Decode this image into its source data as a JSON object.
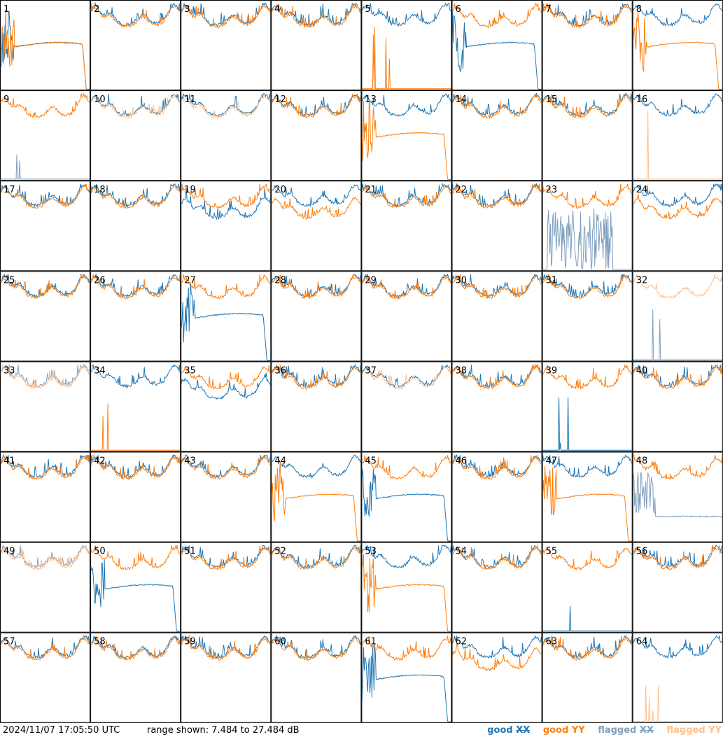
{
  "footer": {
    "timestamp": "2024/11/07 17:05:50 UTC",
    "range_text": "range shown: 7.484 to 27.484 dB"
  },
  "legend": {
    "good_xx": {
      "label": "good",
      "pol": "XX",
      "color": "#1f77b4"
    },
    "good_yy": {
      "label": "good",
      "pol": "YY",
      "color": "#ff7f0e"
    },
    "flagged_xx": {
      "label": "flagged",
      "pol": "XX",
      "color": "#7f9fbf"
    },
    "flagged_yy": {
      "label": "flagged",
      "pol": "YY",
      "color": "#ffbf8c"
    }
  },
  "chart_data": {
    "type": "line",
    "layout": "small-multiples",
    "grid": "8x8",
    "ylim": [
      7.484,
      27.484
    ],
    "units": "dB",
    "tiles": [
      {
        "id": "1",
        "xx": "sat",
        "yy": "sat",
        "note": "XX and YY both saturated, droop at right edge"
      },
      {
        "id": "2",
        "xx": "n",
        "yy": "n"
      },
      {
        "id": "3",
        "xx": "n",
        "yy": "n"
      },
      {
        "id": "4",
        "xx": "n",
        "yy": "n"
      },
      {
        "id": "5",
        "xx": "n",
        "yy": "dead"
      },
      {
        "id": "6",
        "xx": "sat",
        "yy": "n"
      },
      {
        "id": "7",
        "xx": "n",
        "yy": "n"
      },
      {
        "id": "8",
        "xx": "n",
        "yy": "sat"
      },
      {
        "id": "9",
        "xx": "fdead",
        "yy": "n"
      },
      {
        "id": "10",
        "xx": "n",
        "yy": "fn"
      },
      {
        "id": "11",
        "xx": "n",
        "yy": "fn"
      },
      {
        "id": "12",
        "xx": "n",
        "yy": "n"
      },
      {
        "id": "13",
        "xx": "n",
        "yy": "sat"
      },
      {
        "id": "14",
        "xx": "n",
        "yy": "n"
      },
      {
        "id": "15",
        "xx": "n",
        "yy": "n"
      },
      {
        "id": "16",
        "xx": "n",
        "yy": "fdead"
      },
      {
        "id": "17",
        "xx": "n",
        "yy": "n"
      },
      {
        "id": "18",
        "xx": "n",
        "yy": "n"
      },
      {
        "id": "19",
        "xx": "low",
        "yy": "n"
      },
      {
        "id": "20",
        "xx": "n",
        "yy": "low"
      },
      {
        "id": "21",
        "xx": "n",
        "yy": "n"
      },
      {
        "id": "22",
        "xx": "n",
        "yy": "n"
      },
      {
        "id": "23",
        "xx": "fnoise",
        "yy": "n"
      },
      {
        "id": "24",
        "xx": "n",
        "yy": "low"
      },
      {
        "id": "25",
        "xx": "n",
        "yy": "n"
      },
      {
        "id": "26",
        "xx": "n",
        "yy": "n"
      },
      {
        "id": "27",
        "xx": "sat",
        "yy": "n"
      },
      {
        "id": "28",
        "xx": "n",
        "yy": "n"
      },
      {
        "id": "29",
        "xx": "n",
        "yy": "n"
      },
      {
        "id": "30",
        "xx": "n",
        "yy": "n"
      },
      {
        "id": "31",
        "xx": "n",
        "yy": "n"
      },
      {
        "id": "32",
        "xx": "fdead",
        "yy": "fn"
      },
      {
        "id": "33",
        "xx": "fn",
        "yy": "fn"
      },
      {
        "id": "34",
        "xx": "n",
        "yy": "dead"
      },
      {
        "id": "35",
        "xx": "low",
        "yy": "n"
      },
      {
        "id": "36",
        "xx": "n",
        "yy": "n"
      },
      {
        "id": "37",
        "xx": "n",
        "yy": "fn"
      },
      {
        "id": "38",
        "xx": "n",
        "yy": "n"
      },
      {
        "id": "39",
        "xx": "dead",
        "yy": "n"
      },
      {
        "id": "40",
        "xx": "n",
        "yy": "n"
      },
      {
        "id": "41",
        "xx": "n",
        "yy": "n"
      },
      {
        "id": "42",
        "xx": "n",
        "yy": "n"
      },
      {
        "id": "43",
        "xx": "n",
        "yy": "n"
      },
      {
        "id": "44",
        "xx": "n",
        "yy": "sat"
      },
      {
        "id": "45",
        "xx": "sat",
        "yy": "n"
      },
      {
        "id": "46",
        "xx": "n",
        "yy": "n"
      },
      {
        "id": "47",
        "xx": "n",
        "yy": "sat"
      },
      {
        "id": "48",
        "xx": "fsat",
        "yy": "n"
      },
      {
        "id": "49",
        "xx": "fn",
        "yy": "fn"
      },
      {
        "id": "50",
        "xx": "sat",
        "yy": "n"
      },
      {
        "id": "51",
        "xx": "n",
        "yy": "n"
      },
      {
        "id": "52",
        "xx": "n",
        "yy": "n"
      },
      {
        "id": "53",
        "xx": "n",
        "yy": "sat"
      },
      {
        "id": "54",
        "xx": "n",
        "yy": "n"
      },
      {
        "id": "55",
        "xx": "dead",
        "yy": "n"
      },
      {
        "id": "56",
        "xx": "n",
        "yy": "n"
      },
      {
        "id": "57",
        "xx": "n",
        "yy": "n"
      },
      {
        "id": "58",
        "xx": "n",
        "yy": "n"
      },
      {
        "id": "59",
        "xx": "n",
        "yy": "n"
      },
      {
        "id": "60",
        "xx": "n",
        "yy": "n"
      },
      {
        "id": "61",
        "xx": "sat",
        "yy": "n"
      },
      {
        "id": "62",
        "xx": "n",
        "yy": "low"
      },
      {
        "id": "63",
        "xx": "n",
        "yy": "n"
      },
      {
        "id": "64",
        "xx": "n",
        "yy": "fdead"
      }
    ]
  }
}
